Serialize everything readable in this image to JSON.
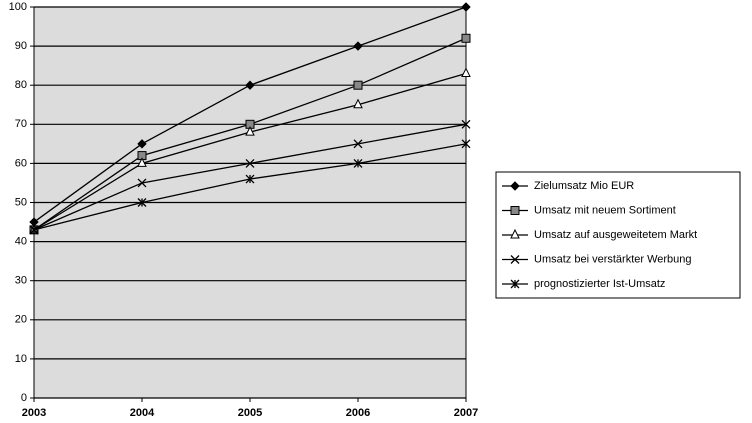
{
  "chart_data": {
    "type": "line",
    "x": [
      2003,
      2004,
      2005,
      2006,
      2007
    ],
    "xlim": [
      2003,
      2007
    ],
    "xticks": [
      2003,
      2004,
      2005,
      2006,
      2007
    ],
    "ylim": [
      0,
      100
    ],
    "yticks": [
      0,
      10,
      20,
      30,
      40,
      50,
      60,
      70,
      80,
      90,
      100
    ],
    "grid": true,
    "legend_position": "right",
    "series": [
      {
        "name": "Zielumsatz Mio EUR",
        "color": "#000000",
        "marker": "diamond",
        "values": [
          45,
          65,
          80,
          90,
          100
        ]
      },
      {
        "name": "Umsatz mit neuem Sortiment",
        "color": "#000000",
        "marker": "square",
        "values": [
          43,
          62,
          70,
          80,
          92
        ]
      },
      {
        "name": "Umsatz auf ausgeweitetem Markt",
        "color": "#000000",
        "marker": "triangle",
        "values": [
          43,
          60,
          68,
          75,
          83
        ]
      },
      {
        "name": "Umsatz bei verstärkter Werbung",
        "color": "#000000",
        "marker": "x",
        "values": [
          43,
          55,
          60,
          65,
          70
        ]
      },
      {
        "name": "prognostizierter Ist-Umsatz",
        "color": "#000000",
        "marker": "star",
        "values": [
          43,
          50,
          56,
          60,
          65
        ]
      }
    ]
  }
}
